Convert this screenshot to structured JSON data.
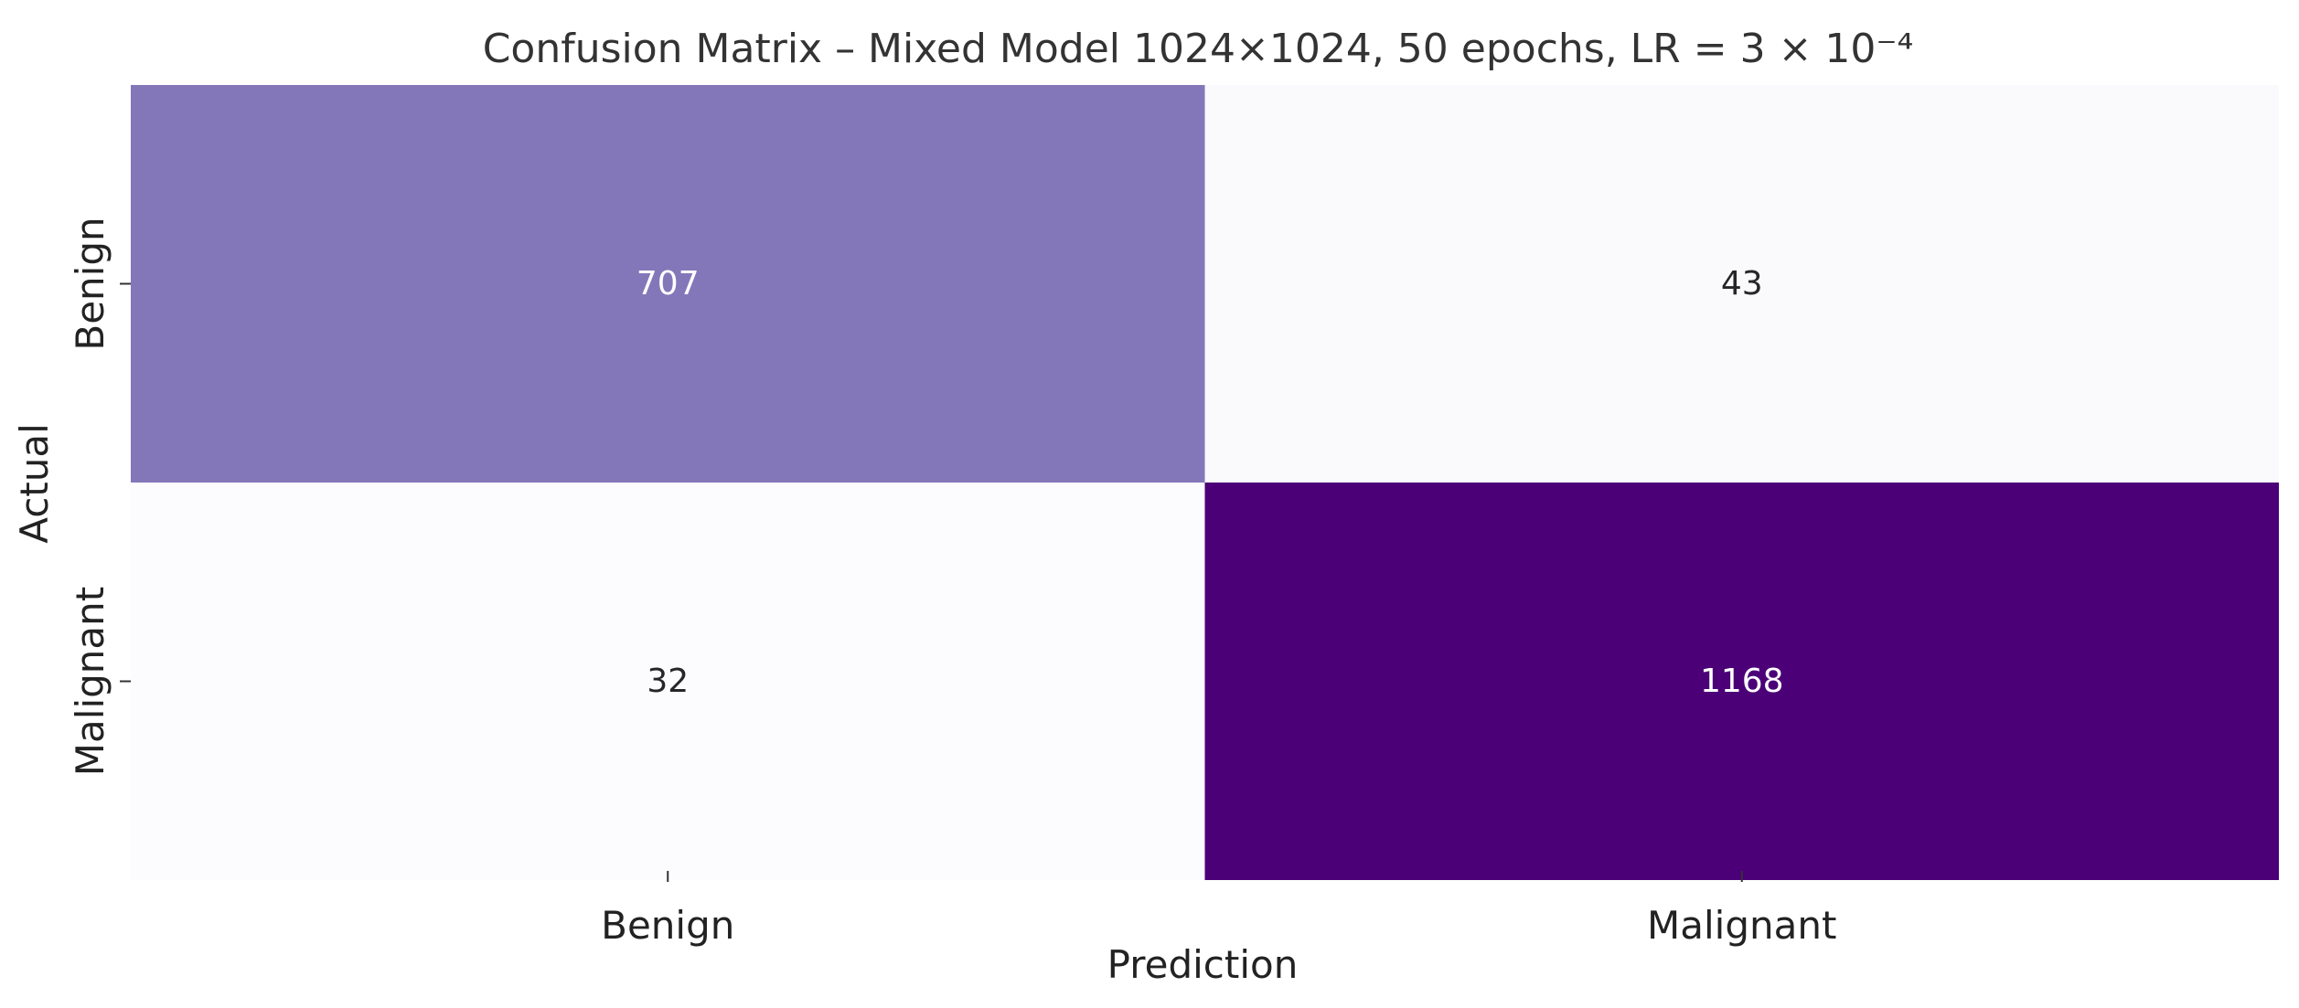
{
  "chart_data": {
    "type": "heatmap",
    "title": "Confusion Matrix – Mixed Model 1024×1024, 50 epochs, LR = 3 × 10⁻⁴",
    "xlabel": "Prediction",
    "ylabel": "Actual",
    "x_categories": [
      "Benign",
      "Malignant"
    ],
    "y_categories": [
      "Benign",
      "Malignant"
    ],
    "values": [
      [
        707,
        43
      ],
      [
        32,
        1168
      ]
    ],
    "colormap": "Purples",
    "color_range": [
      32,
      1168
    ],
    "colors": {
      "low": "#fcfbfd",
      "mid": "#8a84c0",
      "high": "#4b0078",
      "text_dark": "#262626",
      "text_light": "#ffffff"
    },
    "colorbar": false,
    "grid": false
  }
}
